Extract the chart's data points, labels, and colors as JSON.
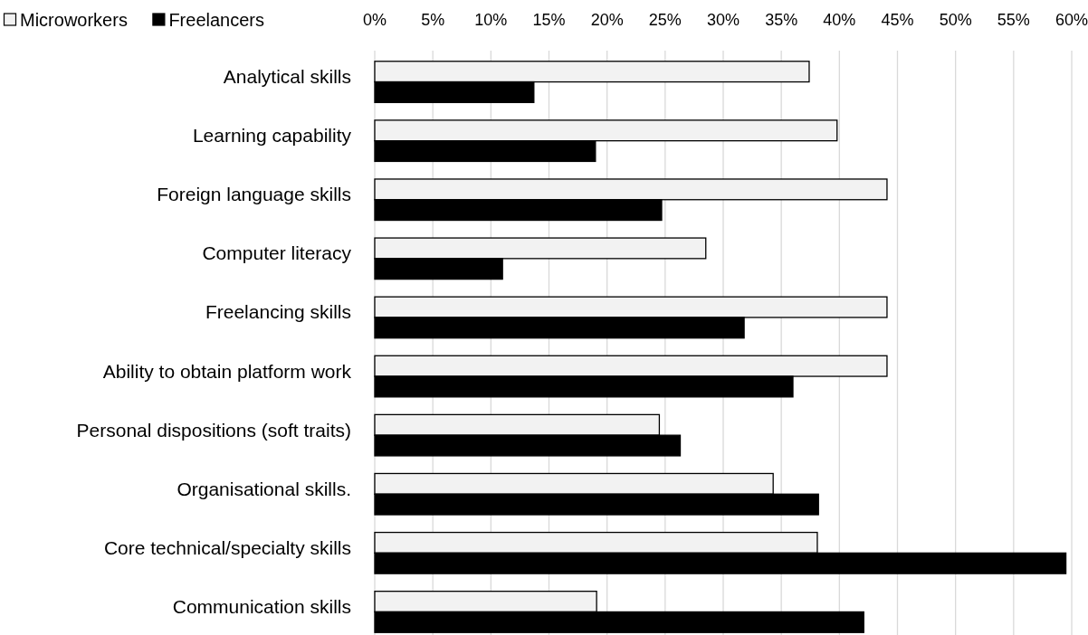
{
  "chart_data": {
    "type": "bar",
    "orientation": "horizontal",
    "categories": [
      "Analytical skills",
      "Learning capability",
      "Foreign language skills",
      "Computer literacy",
      "Freelancing skills",
      "Ability to obtain platform work",
      "Personal dispositions (soft traits)",
      "Organisational skills.",
      "Core technical/specialty skills",
      "Communication skills"
    ],
    "series": [
      {
        "name": "Microworkers",
        "color": "#f2f2f2",
        "values": [
          37.4,
          39.8,
          44.1,
          28.5,
          44.1,
          44.1,
          24.5,
          34.3,
          38.1,
          19.1
        ]
      },
      {
        "name": "Freelancers",
        "color": "#000000",
        "values": [
          13.7,
          19.0,
          24.7,
          11.0,
          31.8,
          36.0,
          26.3,
          38.2,
          59.5,
          42.1
        ]
      }
    ],
    "xlim": [
      0,
      60
    ],
    "xticks": [
      {
        "value": 0,
        "label": "0%"
      },
      {
        "value": 5,
        "label": "5%"
      },
      {
        "value": 10,
        "label": "10%"
      },
      {
        "value": 15,
        "label": "15%"
      },
      {
        "value": 20,
        "label": "20%"
      },
      {
        "value": 25,
        "label": "25%"
      },
      {
        "value": 30,
        "label": "30%"
      },
      {
        "value": 35,
        "label": "35%"
      },
      {
        "value": 40,
        "label": "40%"
      },
      {
        "value": 45,
        "label": "45%"
      },
      {
        "value": 50,
        "label": "50%"
      },
      {
        "value": 55,
        "label": "55%"
      },
      {
        "value": 60,
        "label": "60%"
      }
    ],
    "grid": true,
    "legend": "top left"
  }
}
